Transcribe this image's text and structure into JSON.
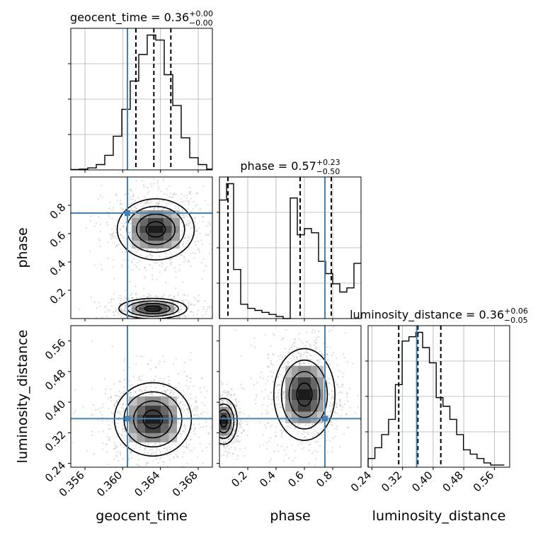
{
  "chart_data": {
    "type": "corner",
    "parameters": [
      "geocent_time",
      "phase",
      "luminosity_distance"
    ],
    "titles": [
      {
        "param": "geocent_time",
        "label": "geocent_time = 0.36",
        "plus": "+0.00",
        "minus": "−0.00",
        "median": 0.36
      },
      {
        "param": "phase",
        "label": "phase = 0.57",
        "plus": "+0.23",
        "minus": "−0.50",
        "median": 0.57
      },
      {
        "param": "luminosity_distance",
        "label": "luminosity_distance = 0.36",
        "plus": "+0.06",
        "minus": "−0.05",
        "median": 0.36
      }
    ],
    "axes": {
      "geocent_time": {
        "range": [
          0.3545,
          0.3695
        ],
        "ticks": [
          "0.356",
          "0.360",
          "0.364",
          "0.368"
        ],
        "tick_values": [
          0.356,
          0.36,
          0.364,
          0.368
        ]
      },
      "phase": {
        "range": [
          0.0,
          1.0
        ],
        "ticks": [
          "0.2",
          "0.4",
          "0.6",
          "0.8"
        ],
        "tick_values": [
          0.2,
          0.4,
          0.6,
          0.8
        ]
      },
      "luminosity_distance": {
        "range": [
          0.23,
          0.6
        ],
        "ticks": [
          "0.24",
          "0.32",
          "0.40",
          "0.48",
          "0.56"
        ],
        "tick_values": [
          0.24,
          0.32,
          0.4,
          0.48,
          0.56
        ]
      }
    },
    "xlabels": [
      "geocent_time",
      "phase",
      "luminosity_distance"
    ],
    "ylabels": [
      "phase",
      "luminosity_distance"
    ],
    "truths": {
      "geocent_time": 0.3605,
      "phase": 0.745,
      "luminosity_distance": 0.357
    },
    "quantiles": {
      "geocent_time": [
        0.3614,
        0.3633,
        0.3651
      ],
      "phase": [
        0.06,
        0.57,
        0.79
      ],
      "luminosity_distance": [
        0.31,
        0.36,
        0.42
      ]
    },
    "histograms": {
      "geocent_time": {
        "bins_left": [
          0.3545,
          0.3554,
          0.3563,
          0.3572,
          0.3581,
          0.359,
          0.3599,
          0.3608,
          0.3617,
          0.3626,
          0.3635,
          0.3644,
          0.3653,
          0.3662,
          0.3671,
          0.368,
          0.3689
        ],
        "bin_width": 0.0009,
        "counts": [
          0.3,
          0.5,
          1.3,
          3.5,
          9.6,
          22.2,
          39.9,
          58.5,
          76.0,
          88.8,
          85.5,
          62.7,
          42.4,
          21.1,
          8.0,
          3.5,
          0.5
        ]
      },
      "phase": {
        "bins_left": [
          0.0,
          0.05,
          0.1,
          0.15,
          0.2,
          0.25,
          0.3,
          0.35,
          0.4,
          0.45,
          0.5,
          0.55,
          0.6,
          0.65,
          0.7,
          0.75,
          0.8,
          0.85,
          0.9,
          0.95
        ],
        "bin_width": 0.05,
        "counts": [
          58,
          66,
          24,
          7,
          5,
          4,
          3,
          2,
          1,
          0,
          59,
          41,
          44,
          42,
          28,
          22,
          17,
          13,
          15,
          27
        ]
      },
      "luminosity_distance": {
        "bins_left": [
          0.23,
          0.2478,
          0.2656,
          0.2834,
          0.3012,
          0.319,
          0.3368,
          0.3546,
          0.3724,
          0.3902,
          0.408,
          0.4258,
          0.4436,
          0.4614,
          0.4792,
          0.497,
          0.5148,
          0.5326,
          0.5504,
          0.5682
        ],
        "bin_width": 0.0178,
        "counts": [
          4,
          9,
          15,
          22,
          38,
          58,
          60,
          62,
          55,
          48,
          32,
          28,
          22,
          15,
          8,
          6,
          4,
          2,
          1,
          1
        ]
      }
    },
    "joint_modes": {
      "geocent_time_vs_phase": [
        {
          "x": 0.3632,
          "y": 0.07,
          "sx": 0.0015,
          "sy": 0.03
        },
        {
          "x": 0.3635,
          "y": 0.63,
          "sx": 0.0017,
          "sy": 0.09
        }
      ],
      "geocent_time_vs_luminosity_distance": [
        {
          "x": 0.3632,
          "y": 0.355,
          "sx": 0.0017,
          "sy": 0.04
        }
      ],
      "phase_vs_luminosity_distance": [
        {
          "x": 0.03,
          "y": 0.35,
          "sx": 0.04,
          "sy": 0.025
        },
        {
          "x": 0.6,
          "y": 0.42,
          "sx": 0.09,
          "sy": 0.05
        }
      ]
    },
    "grid": true,
    "colors": {
      "truth": "#4682b4",
      "hist": "#000000",
      "contour": "#000000",
      "scatter": "#9a9a9a",
      "grid": "#b0b0b0"
    }
  }
}
